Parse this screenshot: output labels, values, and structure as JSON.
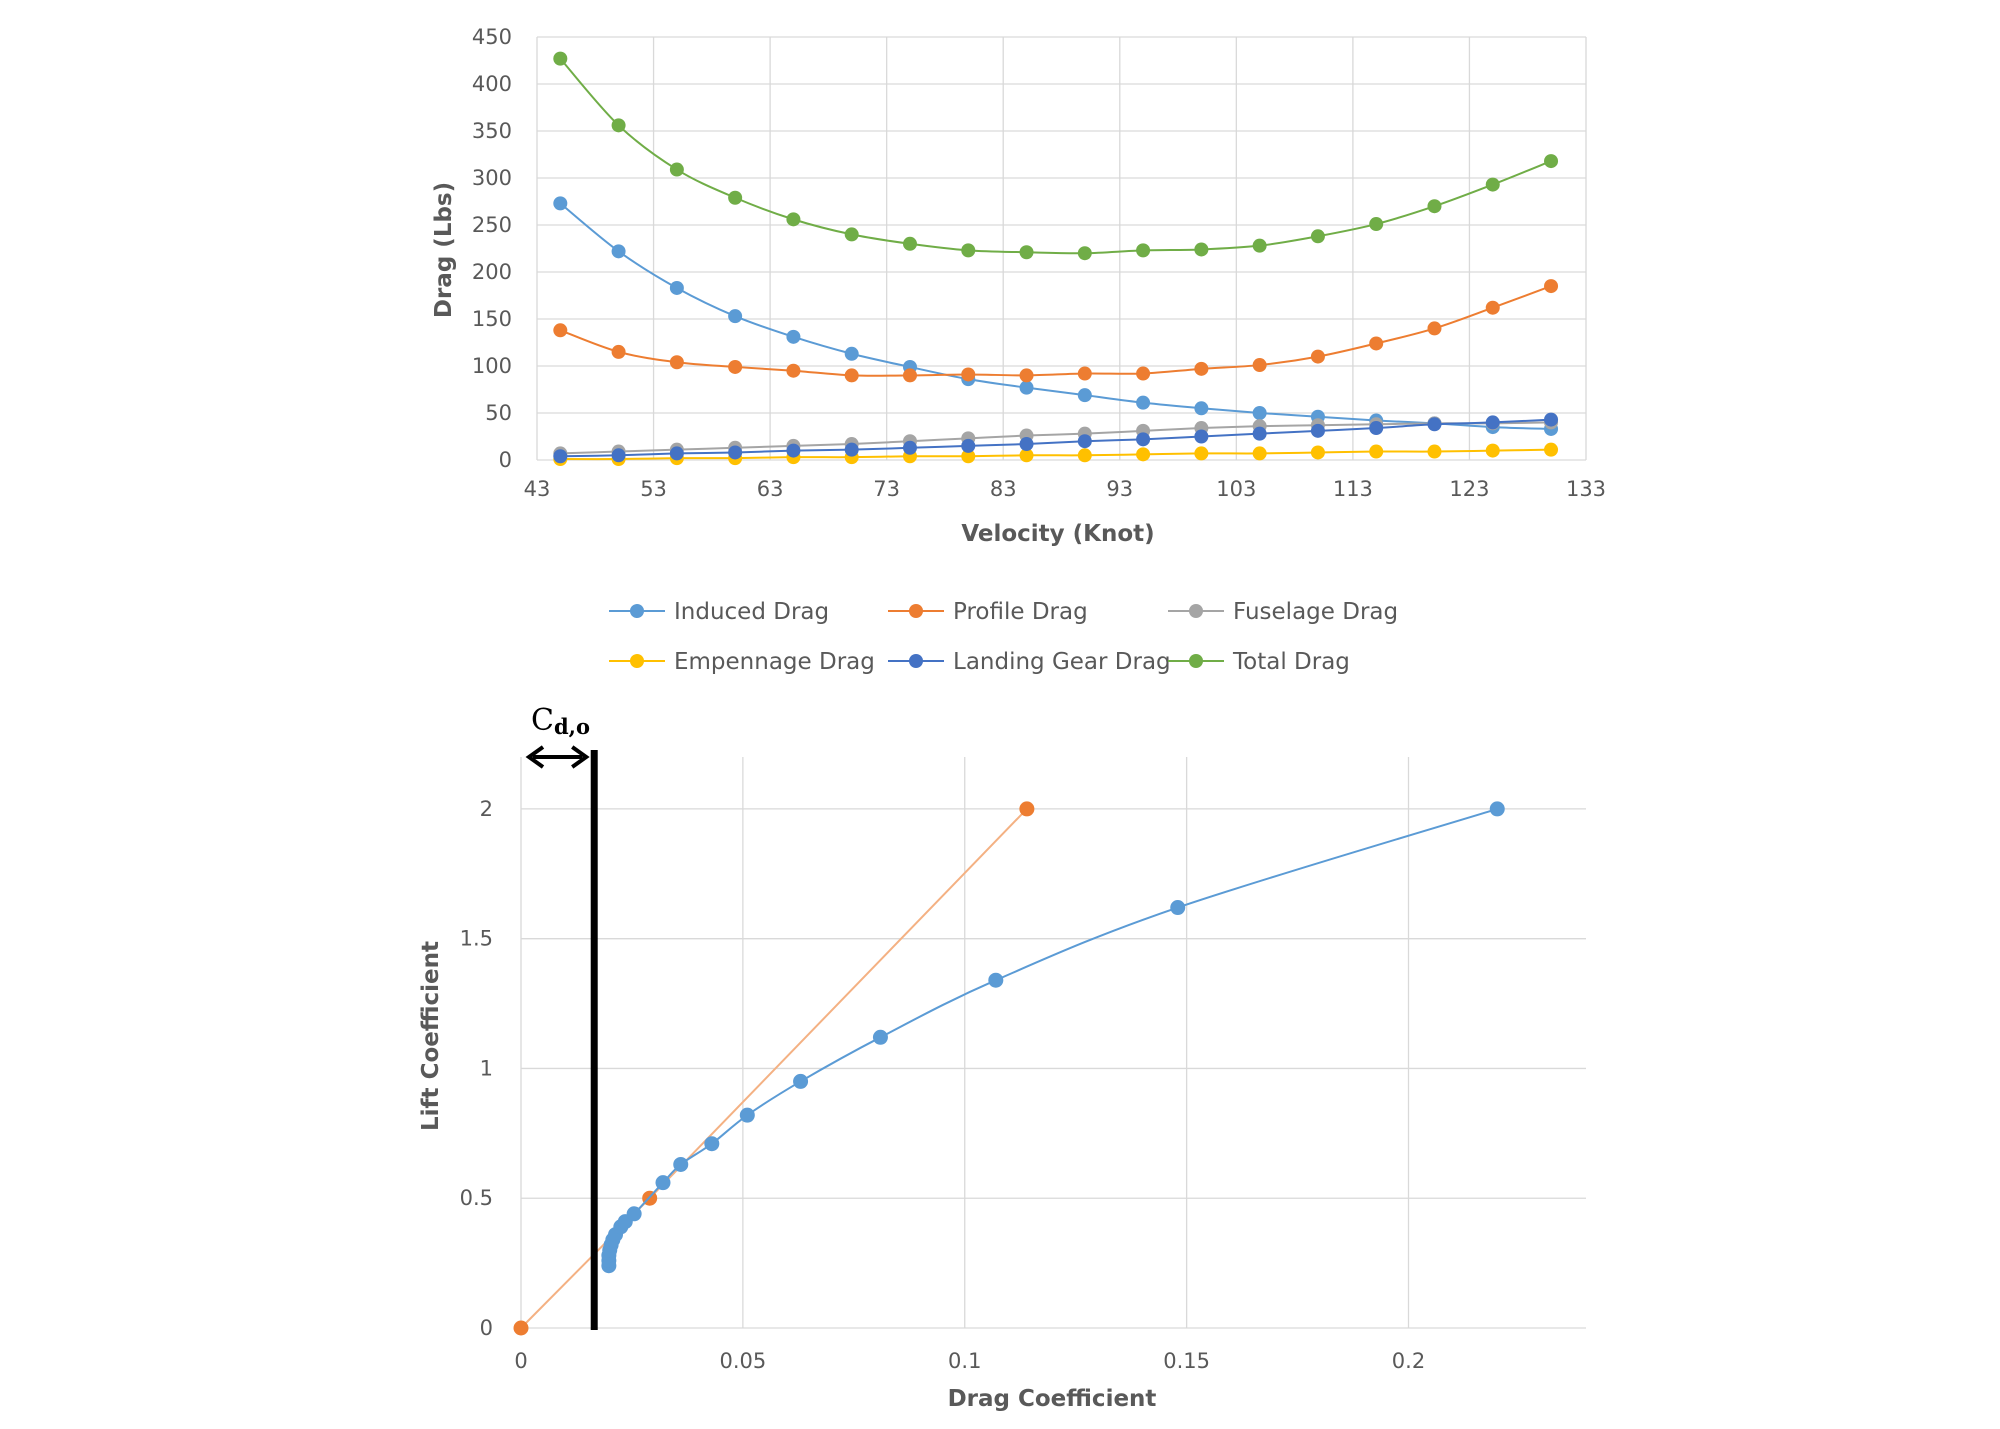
{
  "chart_data": [
    {
      "type": "line",
      "title": "",
      "xlabel": "Velocity (Knot)",
      "ylabel": "Drag (Lbs)",
      "xlim": [
        43,
        133
      ],
      "ylim": [
        0,
        450
      ],
      "xticks": [
        43,
        53,
        63,
        73,
        83,
        93,
        103,
        113,
        123,
        133
      ],
      "yticks": [
        0,
        50,
        100,
        150,
        200,
        250,
        300,
        350,
        400,
        450
      ],
      "grid": true,
      "legend": "bottom",
      "x": [
        45,
        50,
        55,
        60,
        65,
        70,
        75,
        80,
        85,
        90,
        95,
        100,
        105,
        110,
        115,
        120,
        125,
        130
      ],
      "series": [
        {
          "name": "Induced Drag",
          "color": "#5b9bd5",
          "values": [
            273,
            222,
            183,
            153,
            131,
            113,
            99,
            86,
            77,
            69,
            61,
            55,
            50,
            46,
            42,
            39,
            35,
            33
          ]
        },
        {
          "name": "Profile Drag",
          "color": "#ed7d31",
          "values": [
            138,
            115,
            104,
            99,
            95,
            90,
            90,
            91,
            90,
            92,
            92,
            97,
            101,
            110,
            124,
            140,
            162,
            185
          ]
        },
        {
          "name": "Fuselage Drag",
          "color": "#a5a5a5",
          "values": [
            7,
            9,
            11,
            13,
            15,
            17,
            20,
            23,
            26,
            28,
            31,
            34,
            36,
            37,
            38,
            39,
            39,
            40
          ]
        },
        {
          "name": "Empennage Drag",
          "color": "#ffc000",
          "values": [
            1,
            1,
            2,
            2,
            3,
            3,
            4,
            4,
            5,
            5,
            6,
            7,
            7,
            8,
            9,
            9,
            10,
            11
          ]
        },
        {
          "name": "Landing Gear Drag",
          "color": "#4472c4",
          "values": [
            4,
            5,
            7,
            8,
            10,
            11,
            13,
            15,
            17,
            20,
            22,
            25,
            28,
            31,
            34,
            38,
            40,
            43
          ]
        },
        {
          "name": "Total Drag",
          "color": "#70ad47",
          "values": [
            427,
            356,
            309,
            279,
            256,
            240,
            230,
            223,
            221,
            220,
            223,
            224,
            228,
            238,
            251,
            270,
            293,
            318
          ]
        }
      ]
    },
    {
      "type": "scatter",
      "title": "",
      "xlabel": "Drag Coefficient",
      "ylabel": "Lift Coefficient",
      "xlim": [
        0,
        0.24
      ],
      "ylim": [
        0,
        2.2
      ],
      "xticks": [
        0,
        0.05,
        0.1,
        0.15,
        0.2
      ],
      "yticks": [
        0,
        0.5,
        1,
        1.5,
        2
      ],
      "grid": true,
      "series": [
        {
          "name": "",
          "color": "#ed7d31",
          "line_color": "#f4b183",
          "points": [
            [
              0,
              0
            ],
            [
              0.029,
              0.5
            ],
            [
              0.114,
              2.0
            ]
          ]
        },
        {
          "name": "",
          "color": "#5b9bd5",
          "points": [
            [
              0.0198,
              0.24
            ],
            [
              0.0198,
              0.26
            ],
            [
              0.0198,
              0.28
            ],
            [
              0.02,
              0.3
            ],
            [
              0.0203,
              0.32
            ],
            [
              0.0207,
              0.34
            ],
            [
              0.0213,
              0.36
            ],
            [
              0.0225,
              0.39
            ],
            [
              0.0235,
              0.41
            ],
            [
              0.0255,
              0.44
            ],
            [
              0.032,
              0.56
            ],
            [
              0.036,
              0.63
            ],
            [
              0.043,
              0.71
            ],
            [
              0.051,
              0.82
            ],
            [
              0.063,
              0.95
            ],
            [
              0.081,
              1.12
            ],
            [
              0.107,
              1.34
            ],
            [
              0.148,
              1.62
            ],
            [
              0.22,
              2.0
            ]
          ]
        }
      ],
      "annotation": {
        "label": "Cd,o",
        "label_main": "C",
        "label_sub": "d,o",
        "x": 0.0165
      }
    }
  ]
}
